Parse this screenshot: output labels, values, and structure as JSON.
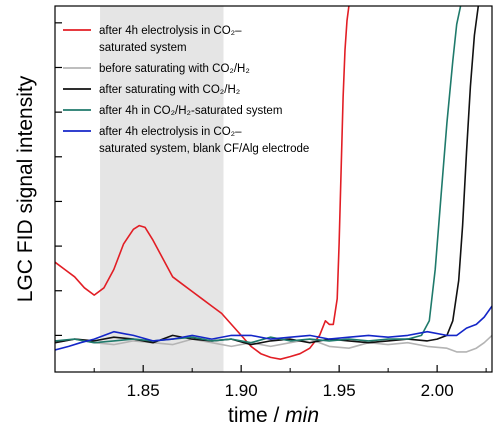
{
  "chart_data": {
    "type": "line",
    "xlabel": "time / min",
    "xlabel_parts": {
      "main": "time / ",
      "unit": "min"
    },
    "ylabel": "LGC FID signal intensity",
    "xlim": [
      1.805,
      2.028
    ],
    "ylim": [
      0,
      100
    ],
    "y_ticks_labeled": false,
    "x_ticks": [
      1.85,
      1.9,
      1.95,
      2.0
    ],
    "x_tick_labels": [
      "1.85",
      "1.90",
      "1.95",
      "2.00"
    ],
    "y_ticks": [
      10,
      22.2,
      34.4,
      46.6,
      58.8,
      71,
      83.2,
      95.4
    ],
    "grid": false,
    "highlight_region": {
      "x": [
        1.828,
        1.891
      ],
      "color": "#e5e5e5"
    },
    "legend_position": "top-left",
    "legend": [
      {
        "color": "#e21e25",
        "lines": [
          "after 4h electrolysis in CO₂–",
          "saturated system"
        ]
      },
      {
        "color": "#b4b4b4",
        "lines": [
          "before saturating with CO₂/H₂"
        ]
      },
      {
        "color": "#111111",
        "lines": [
          "after saturating with CO₂/H₂"
        ]
      },
      {
        "color": "#1f7a6b",
        "lines": [
          "after 4h in CO₂/H₂-saturated system"
        ]
      },
      {
        "color": "#1426c8",
        "lines": [
          "after 4h electrolysis in CO₂–",
          "saturated system, blank CF/Alg electrode"
        ]
      }
    ],
    "series": [
      {
        "color": "#e21e25",
        "x": [
          1.805,
          1.81,
          1.815,
          1.82,
          1.825,
          1.83,
          1.835,
          1.84,
          1.845,
          1.848,
          1.851,
          1.855,
          1.86,
          1.865,
          1.87,
          1.875,
          1.88,
          1.885,
          1.89,
          1.895,
          1.9,
          1.905,
          1.91,
          1.915,
          1.92,
          1.925,
          1.93,
          1.935,
          1.94,
          1.943,
          1.945,
          1.947,
          1.949,
          1.95,
          1.951,
          1.952,
          1.953,
          1.954,
          1.955
        ],
        "y": [
          30,
          28,
          26,
          23,
          21,
          23,
          28,
          35,
          39,
          40,
          39.5,
          36,
          31,
          26,
          24,
          22,
          20,
          18,
          16,
          13,
          10,
          7,
          5,
          4,
          3.5,
          4.2,
          5,
          6.5,
          10,
          14,
          13,
          13,
          20,
          35,
          55,
          75,
          88,
          96,
          100
        ]
      },
      {
        "color": "#b4b4b4",
        "x": [
          1.805,
          1.815,
          1.825,
          1.835,
          1.845,
          1.855,
          1.865,
          1.875,
          1.885,
          1.895,
          1.905,
          1.915,
          1.925,
          1.935,
          1.945,
          1.955,
          1.965,
          1.975,
          1.985,
          1.995,
          2.005,
          2.01,
          2.015,
          2.02,
          2.024,
          2.028
        ],
        "y": [
          8,
          9,
          8,
          7.5,
          8.5,
          8,
          7.5,
          9,
          8,
          7,
          8,
          7,
          8,
          9,
          7,
          6.5,
          8,
          7.5,
          8,
          7,
          6.5,
          5.5,
          5.5,
          6.5,
          8,
          10
        ]
      },
      {
        "color": "#111111",
        "x": [
          1.805,
          1.815,
          1.825,
          1.835,
          1.845,
          1.855,
          1.865,
          1.875,
          1.885,
          1.895,
          1.905,
          1.915,
          1.925,
          1.935,
          1.945,
          1.955,
          1.965,
          1.975,
          1.985,
          1.995,
          2.0,
          2.005,
          2.008,
          2.011,
          2.013,
          2.015,
          2.017,
          2.019,
          2.021
        ],
        "y": [
          8,
          9,
          8.5,
          9.5,
          9,
          8,
          10,
          9,
          8.5,
          9,
          7.5,
          8.5,
          9,
          8,
          9,
          8.5,
          8,
          8.5,
          9,
          8.5,
          9,
          10,
          14,
          25,
          40,
          60,
          78,
          92,
          100
        ]
      },
      {
        "color": "#1f7a6b",
        "x": [
          1.805,
          1.815,
          1.825,
          1.835,
          1.845,
          1.855,
          1.865,
          1.875,
          1.885,
          1.895,
          1.905,
          1.915,
          1.925,
          1.935,
          1.945,
          1.955,
          1.965,
          1.975,
          1.985,
          1.992,
          1.996,
          1.999,
          2.002,
          2.005,
          2.008,
          2.01,
          2.012
        ],
        "y": [
          8.5,
          9,
          8,
          8.5,
          9,
          8.5,
          9,
          9.5,
          8.5,
          9,
          8,
          9.5,
          8.5,
          9,
          8.5,
          9,
          8.5,
          9,
          9,
          10,
          14,
          28,
          48,
          68,
          85,
          95,
          100
        ]
      },
      {
        "color": "#1426c8",
        "x": [
          1.805,
          1.812,
          1.818,
          1.825,
          1.835,
          1.845,
          1.855,
          1.865,
          1.875,
          1.885,
          1.895,
          1.905,
          1.915,
          1.925,
          1.935,
          1.945,
          1.955,
          1.965,
          1.975,
          1.985,
          1.995,
          2.005,
          2.01,
          2.015,
          2.02,
          2.024,
          2.028
        ],
        "y": [
          6,
          7,
          8,
          9,
          11,
          10,
          8.5,
          9,
          10,
          9,
          10,
          10,
          9,
          9.5,
          10,
          9,
          9.5,
          10,
          9.5,
          10,
          11,
          10,
          10,
          12,
          13,
          15,
          18
        ]
      }
    ]
  }
}
